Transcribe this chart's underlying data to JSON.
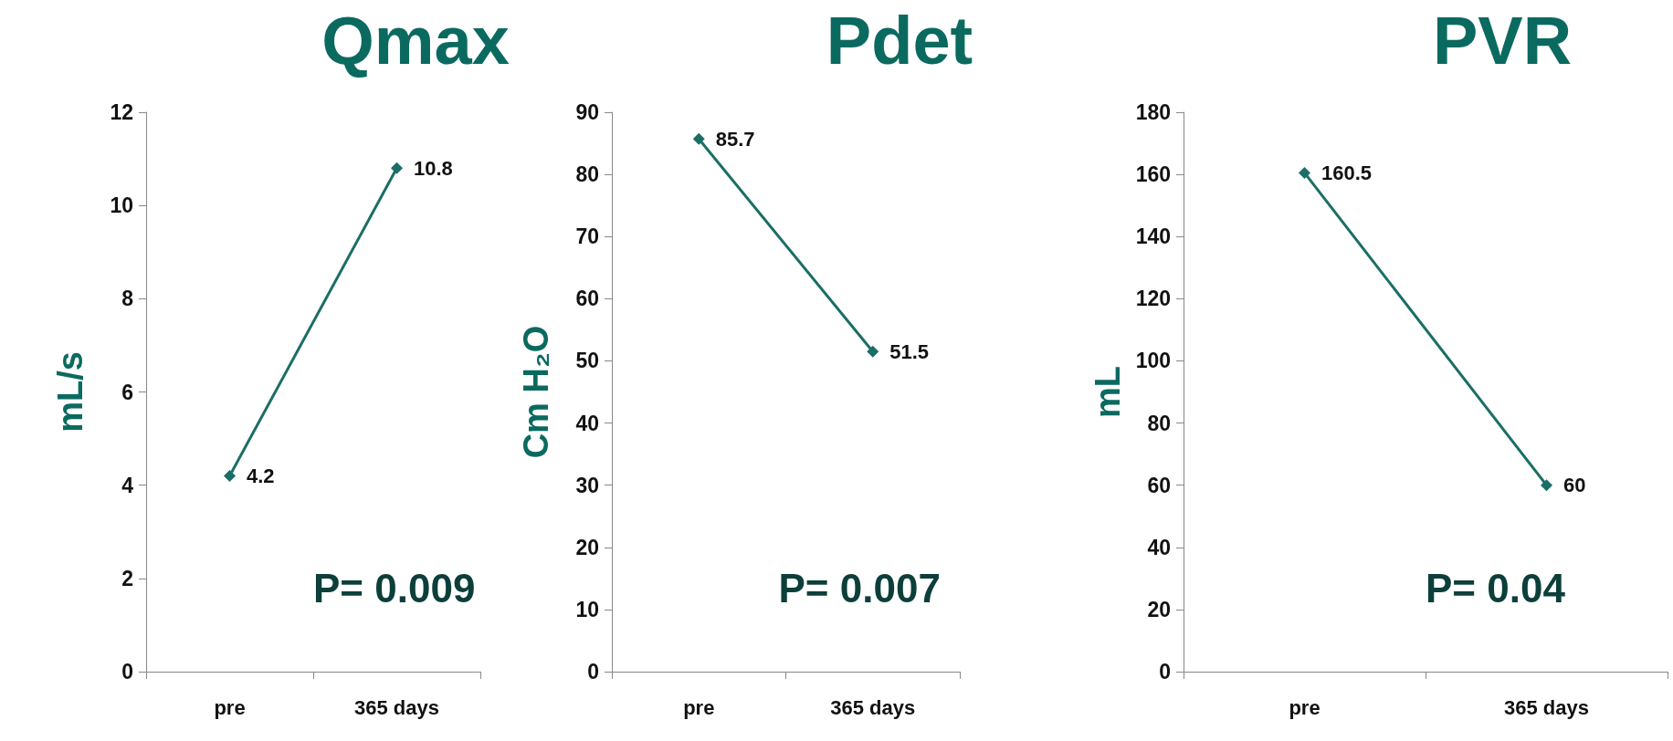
{
  "chart_data": [
    {
      "type": "line",
      "title": "Qmax",
      "ylabel": "mL/s",
      "categories": [
        "pre",
        "365 days"
      ],
      "series": [
        {
          "color": "#1a6e66",
          "values": [
            4.2,
            10.8
          ]
        }
      ],
      "ylim": [
        0,
        12
      ],
      "yticks": [
        0,
        2,
        4,
        6,
        8,
        10,
        12
      ],
      "grid": false,
      "marker": "diamond",
      "line_style": "solid",
      "data_labels": true,
      "annotations": [
        "P= 0.009"
      ]
    },
    {
      "type": "line",
      "title": "Pdet",
      "ylabel": "Cm H₂O",
      "categories": [
        "pre",
        "365 days"
      ],
      "series": [
        {
          "color": "#1a6e66",
          "values": [
            85.7,
            51.5
          ]
        }
      ],
      "ylim": [
        0,
        90
      ],
      "yticks": [
        0,
        10,
        20,
        30,
        40,
        50,
        60,
        70,
        80,
        90
      ],
      "grid": false,
      "marker": "diamond",
      "line_style": "solid",
      "data_labels": true,
      "annotations": [
        "P= 0.007"
      ]
    },
    {
      "type": "line",
      "title": "PVR",
      "ylabel": "mL",
      "categories": [
        "pre",
        "365 days"
      ],
      "series": [
        {
          "color": "#1a6e66",
          "values": [
            160.5,
            60
          ]
        }
      ],
      "ylim": [
        0,
        180
      ],
      "yticks": [
        0,
        20,
        40,
        60,
        80,
        100,
        120,
        140,
        160,
        180
      ],
      "grid": false,
      "marker": "diamond",
      "line_style": "solid",
      "data_labels": true,
      "annotations": [
        "P= 0.04"
      ]
    }
  ]
}
